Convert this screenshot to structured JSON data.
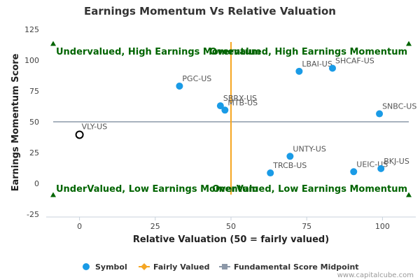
{
  "chart_data": {
    "type": "scatter",
    "title": "Earnings Momentum Vs Relative Valuation",
    "xlabel": "Relative Valuation (50 = fairly valued)",
    "ylabel": "Earnings Momentum Score",
    "xlim": [
      -11,
      111
    ],
    "ylim": [
      -25,
      125
    ],
    "xticks": [
      0,
      25,
      50,
      75,
      100
    ],
    "yticks": [
      -25,
      0,
      25,
      50,
      75,
      100,
      125
    ],
    "points": [
      {
        "label": "PGC-US",
        "x": 33,
        "y": 79
      },
      {
        "label": "SBRX-US",
        "x": 46.5,
        "y": 63
      },
      {
        "label": "MTB-US",
        "x": 48,
        "y": 59.5
      },
      {
        "label": "LBAI-US",
        "x": 72.5,
        "y": 91
      },
      {
        "label": "SHCAF-US",
        "x": 83.5,
        "y": 93.5
      },
      {
        "label": "SNBC-US",
        "x": 99,
        "y": 56.5
      },
      {
        "label": "UNTY-US",
        "x": 69.5,
        "y": 22
      },
      {
        "label": "TRCB-US",
        "x": 63,
        "y": 8.5
      },
      {
        "label": "UEIC-US",
        "x": 90.5,
        "y": 9.5
      },
      {
        "label": "BKJ-US",
        "x": 99.5,
        "y": 12
      }
    ],
    "highlight": {
      "label": "VLY-US",
      "x": 0,
      "y": 39.5
    },
    "fairly_valued_x": 50,
    "midpoint_y": 50,
    "quadrant_labels": {
      "top_left": "Undervalued, High Earnings Momentum",
      "top_right": "Overvalued, High Earnings Momentum",
      "bottom_left": "UnderValued, Low Earnings Momentum",
      "bottom_right": "OverValued, Low Earnings Momentum"
    },
    "legend": {
      "position": "bottom",
      "entries": [
        "Symbol",
        "Fairly Valued",
        "Fundamental Score Midpoint"
      ]
    },
    "colors": {
      "symbol": "#1a9be6",
      "fairly_valued": "#f5a623",
      "midpoint": "#8c98a8",
      "quadrant_text": "#006400",
      "arrow": "#006400"
    },
    "grid": false
  },
  "credit": "www.capitalcube.com"
}
